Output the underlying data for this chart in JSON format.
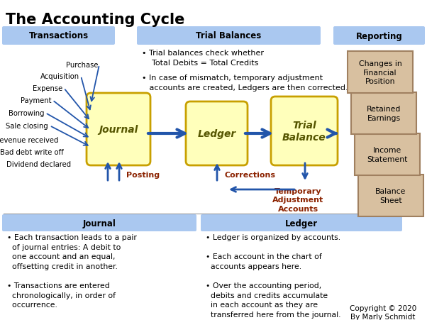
{
  "title": "The Accounting Cycle",
  "bg_color": "#ffffff",
  "title_fontsize": 15,
  "header_bg": "#aac8f0",
  "box_fill": "#ffffbb",
  "box_edge": "#c8a000",
  "reporting_fill": "#d8c0a0",
  "reporting_edge": "#a08060",
  "arrow_color": "#2255aa",
  "label_color": "#8b2200",
  "transaction_items": [
    "Purchase",
    "Acquisition",
    "Expense",
    "Payment",
    "Borrowing",
    "Sale closing",
    "Revenue received",
    "Bad debt write off",
    "Dividend declared"
  ],
  "reporting_boxes": [
    "Changes in\nFinancial\nPosition",
    "Retained\nEarnings",
    "Income\nStatement",
    "Balance\nSheet"
  ],
  "copyright": "Copyright © 2020\nBy Marly Schmidt"
}
